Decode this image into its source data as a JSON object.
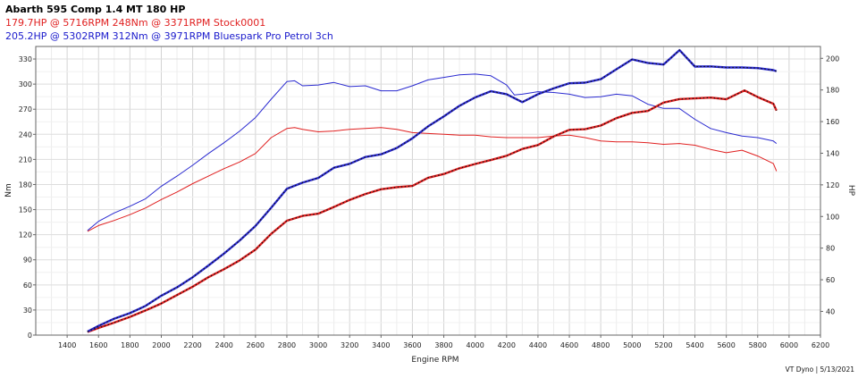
{
  "header": {
    "title": "Abarth 595 Comp 1.4 MT 180 HP",
    "run1": "179.7HP @  5716RPM  248Nm @ 3371RPM  Stock0001",
    "run2": "205.2HP @  5302RPM  312Nm @ 3971RPM  Bluespark Pro Petrol 3ch"
  },
  "footer": "VT Dyno | 5/13/2021",
  "colors": {
    "stock": "#e02020",
    "bluespark": "#2a2ad0",
    "grid": "#dddddd"
  },
  "chart_data": {
    "type": "line",
    "xlabel": "Engine RPM",
    "ylabel": "Nm",
    "ylabel_right": "HP",
    "xlim": [
      1200,
      6200
    ],
    "ylim": [
      0,
      345
    ],
    "ylim_right": [
      25,
      207.5
    ],
    "xticks": [
      1400,
      1600,
      1800,
      2000,
      2200,
      2400,
      2600,
      2800,
      3000,
      3200,
      3400,
      3600,
      3800,
      4000,
      4200,
      4400,
      4600,
      4800,
      5000,
      5200,
      5400,
      5600,
      5800,
      6000,
      6200
    ],
    "yticks": [
      0,
      30,
      60,
      90,
      120,
      150,
      180,
      210,
      240,
      270,
      300,
      330
    ],
    "yticks_right": [
      40,
      60,
      80,
      100,
      120,
      140,
      160,
      180,
      200
    ],
    "series": [
      {
        "name": "Stock0001 Torque",
        "unit": "Nm",
        "axis": "left",
        "color": "#e02020",
        "x": [
          1530,
          1600,
          1700,
          1800,
          1900,
          2000,
          2100,
          2200,
          2300,
          2400,
          2500,
          2600,
          2700,
          2800,
          2850,
          2900,
          3000,
          3100,
          3200,
          3300,
          3400,
          3500,
          3600,
          3700,
          3800,
          3900,
          4000,
          4100,
          4200,
          4300,
          4400,
          4500,
          4600,
          4700,
          4800,
          4900,
          5000,
          5100,
          5200,
          5300,
          5400,
          5500,
          5600,
          5700,
          5800,
          5900,
          5920
        ],
        "y": [
          124,
          131,
          137,
          144,
          152,
          162,
          171,
          181,
          190,
          199,
          207,
          217,
          236,
          247,
          248,
          246,
          243,
          244,
          246,
          247,
          248,
          246,
          242,
          241,
          240,
          239,
          239,
          237,
          236,
          236,
          236,
          238,
          239,
          236,
          232,
          231,
          231,
          230,
          228,
          229,
          227,
          222,
          218,
          221,
          214,
          205,
          196
        ]
      },
      {
        "name": "Bluespark Torque",
        "unit": "Nm",
        "axis": "left",
        "color": "#2a2ad0",
        "x": [
          1530,
          1600,
          1700,
          1800,
          1900,
          2000,
          2100,
          2200,
          2300,
          2400,
          2500,
          2600,
          2700,
          2800,
          2850,
          2900,
          3000,
          3100,
          3200,
          3300,
          3400,
          3500,
          3600,
          3700,
          3800,
          3900,
          4000,
          4100,
          4200,
          4250,
          4300,
          4400,
          4500,
          4600,
          4700,
          4800,
          4900,
          5000,
          5100,
          5200,
          5300,
          5400,
          5500,
          5600,
          5700,
          5800,
          5900,
          5920
        ],
        "y": [
          125,
          136,
          146,
          154,
          163,
          178,
          190,
          203,
          217,
          230,
          244,
          260,
          282,
          303,
          304,
          298,
          299,
          302,
          297,
          298,
          292,
          292,
          298,
          305,
          308,
          311,
          312,
          310,
          299,
          287,
          288,
          291,
          290,
          288,
          284,
          285,
          288,
          286,
          276,
          271,
          271,
          258,
          247,
          242,
          238,
          236,
          232,
          229
        ]
      },
      {
        "name": "Stock0001 Power",
        "unit": "HP",
        "axis": "right",
        "color": "#e02020",
        "x": [
          1530,
          1600,
          1700,
          1800,
          1900,
          2000,
          2100,
          2200,
          2300,
          2400,
          2500,
          2600,
          2700,
          2800,
          2900,
          3000,
          3100,
          3200,
          3300,
          3400,
          3500,
          3600,
          3700,
          3800,
          3900,
          4000,
          4100,
          4200,
          4300,
          4400,
          4500,
          4600,
          4700,
          4800,
          4900,
          5000,
          5100,
          5200,
          5300,
          5400,
          5500,
          5600,
          5716,
          5800,
          5900,
          5920
        ],
        "y": [
          27.0,
          29.5,
          32.9,
          36.5,
          40.6,
          45.0,
          50.3,
          55.6,
          61.6,
          66.7,
          72.3,
          79.0,
          89.0,
          97.3,
          100.4,
          101.8,
          106.0,
          110.5,
          114.2,
          117.2,
          118.5,
          119.3,
          124.5,
          126.9,
          130.5,
          133.2,
          135.7,
          138.4,
          142.7,
          145.2,
          150.6,
          154.8,
          155.2,
          157.5,
          162.2,
          165.5,
          166.7,
          172.0,
          174.2,
          174.7,
          175.2,
          174.1,
          179.7,
          175.5,
          171.3,
          167.0
        ]
      },
      {
        "name": "Bluespark Power",
        "unit": "HP",
        "axis": "right",
        "color": "#2a2ad0",
        "x": [
          1530,
          1600,
          1700,
          1800,
          1900,
          2000,
          2100,
          2200,
          2300,
          2400,
          2500,
          2600,
          2700,
          2800,
          2900,
          3000,
          3100,
          3200,
          3300,
          3400,
          3500,
          3600,
          3700,
          3800,
          3900,
          4000,
          4100,
          4200,
          4300,
          4400,
          4500,
          4600,
          4700,
          4800,
          4900,
          5000,
          5100,
          5200,
          5302,
          5400,
          5500,
          5600,
          5700,
          5800,
          5900,
          5920
        ],
        "y": [
          27.2,
          30.8,
          35.4,
          38.9,
          43.5,
          49.9,
          55.2,
          61.6,
          69.0,
          76.6,
          84.9,
          94.0,
          105.5,
          117.5,
          121.4,
          124.4,
          130.8,
          133.3,
          137.6,
          139.3,
          143.3,
          149.4,
          157.0,
          163.3,
          170.0,
          175.3,
          179.2,
          177.3,
          172.3,
          177.3,
          181.0,
          184.2,
          184.6,
          186.8,
          193.1,
          199.3,
          197.1,
          196.1,
          205.2,
          194.8,
          194.9,
          194.2,
          194.2,
          193.8,
          192.5,
          191.8
        ]
      }
    ]
  }
}
